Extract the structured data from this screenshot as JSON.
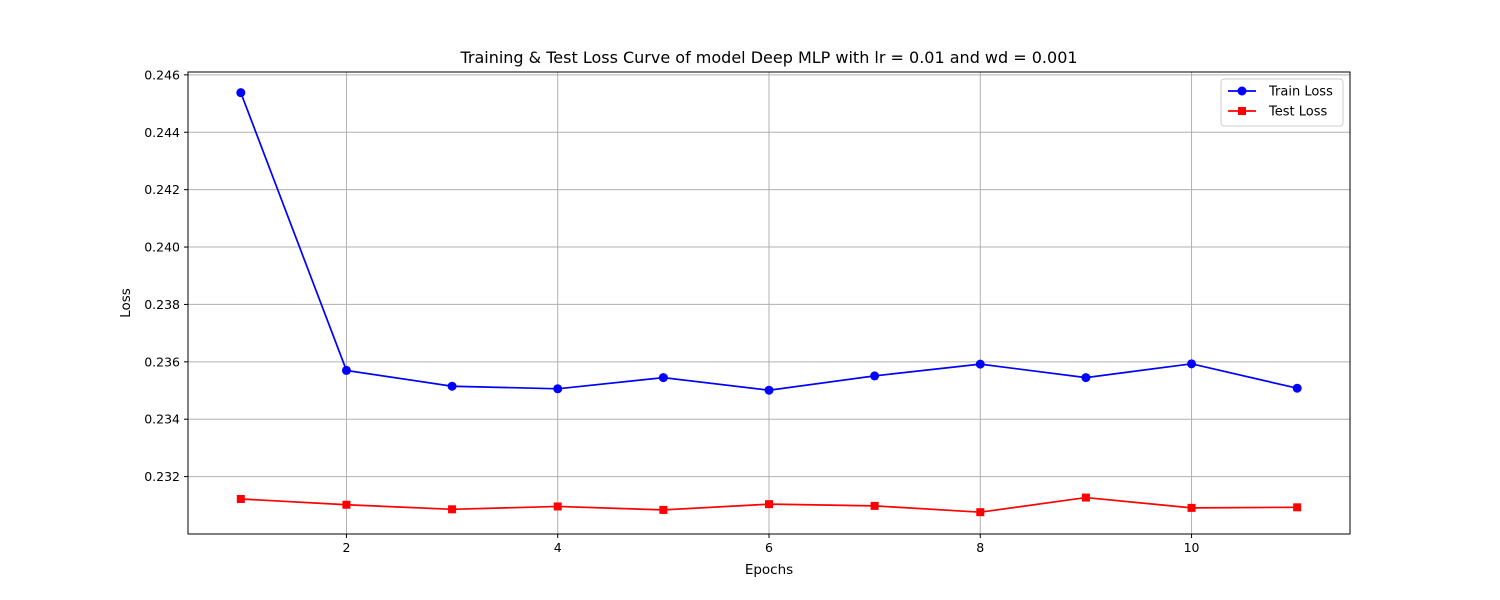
{
  "chart_data": {
    "type": "line",
    "title": "Training & Test Loss Curve of model Deep MLP with lr = 0.01 and wd = 0.001",
    "xlabel": "Epochs",
    "ylabel": "Loss",
    "x": [
      1,
      2,
      3,
      4,
      5,
      6,
      7,
      8,
      9,
      10,
      11
    ],
    "xticks": [
      2,
      4,
      6,
      8,
      10
    ],
    "yticks": [
      "0.232",
      "0.234",
      "0.236",
      "0.238",
      "0.240",
      "0.242",
      "0.244",
      "0.246"
    ],
    "xlim": [
      0.5,
      11.5
    ],
    "ylim": [
      0.23,
      0.2461
    ],
    "grid": true,
    "legend_position": "top-right",
    "series": [
      {
        "name": "Train Loss",
        "color": "#0000ff",
        "marker": "circle",
        "values": [
          0.24538,
          0.2357,
          0.23515,
          0.23506,
          0.23545,
          0.23501,
          0.23551,
          0.23592,
          0.23545,
          0.23593,
          0.23508
        ]
      },
      {
        "name": "Test Loss",
        "color": "#ff0000",
        "marker": "square",
        "values": [
          0.23122,
          0.23102,
          0.23086,
          0.23096,
          0.23084,
          0.23104,
          0.23098,
          0.23076,
          0.23127,
          0.23091,
          0.23093
        ]
      }
    ]
  }
}
